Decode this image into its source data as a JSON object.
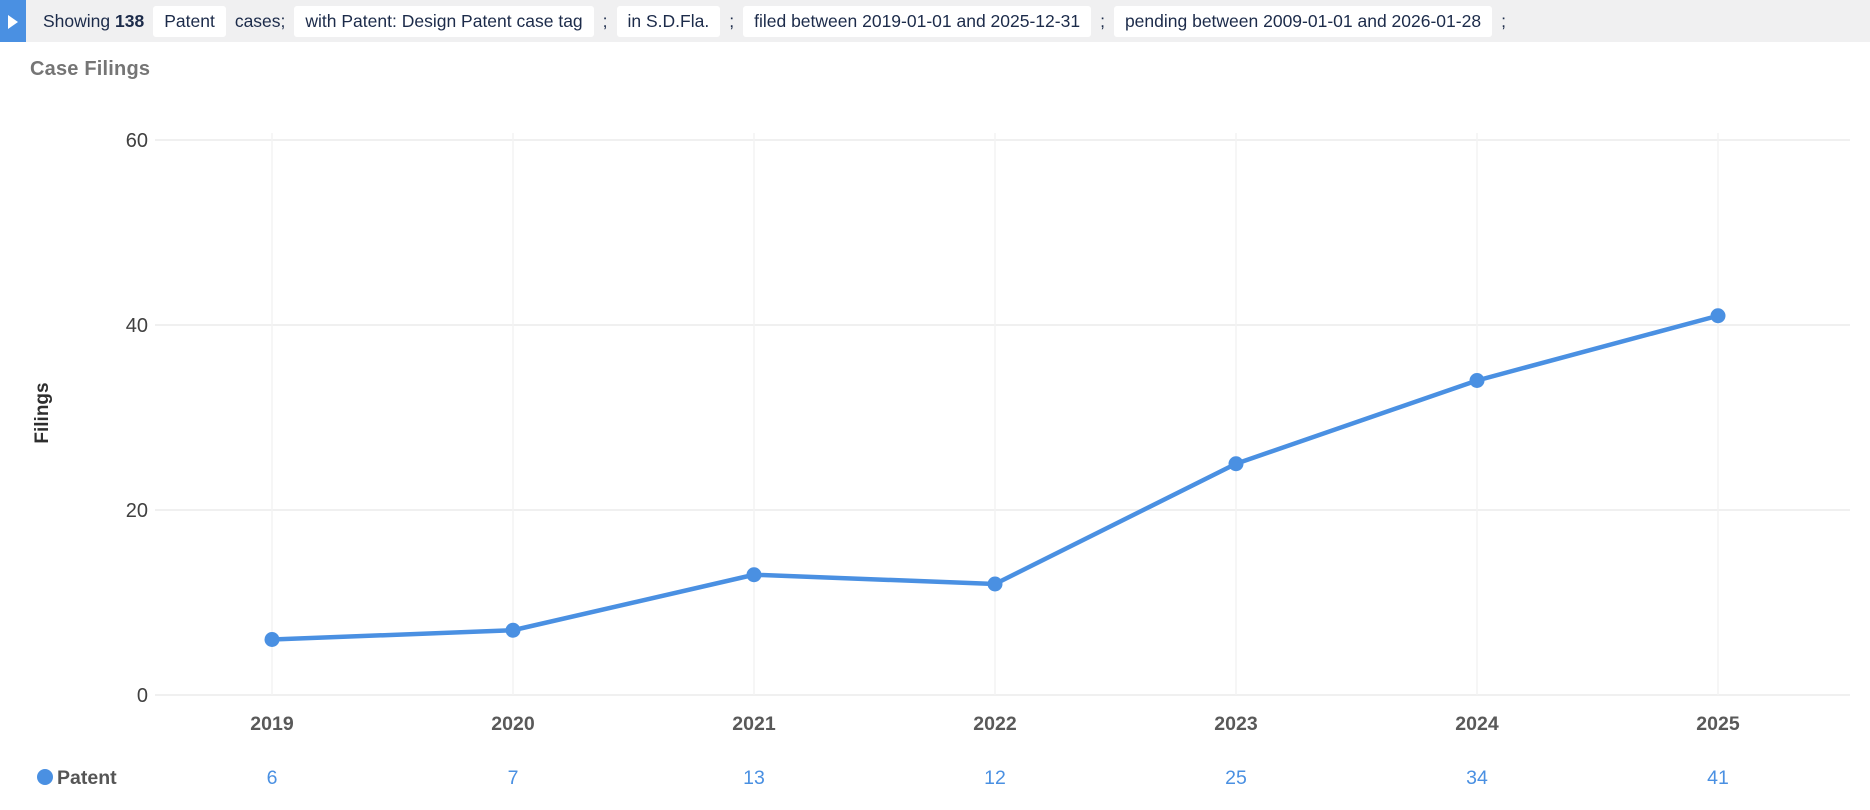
{
  "filter_bar": {
    "showing_label": "Showing",
    "count": "138",
    "case_type_chip": "Patent",
    "cases_separator": "cases;",
    "semicolon": ";",
    "chips": [
      "with Patent: Design Patent case tag",
      "in S.D.Fla.",
      "filed between 2019-01-01 and 2025-12-31",
      "pending between 2009-01-01 and 2026-01-28"
    ]
  },
  "icons": {
    "filter_toggle": "right-triangle-icon",
    "legend_marker": "circle-icon"
  },
  "colors": {
    "accent_blue": "#4a90e2",
    "toggle_button_blue": "#4a90e2",
    "filter_bar_bg": "#f0f0f1",
    "chip_bg": "#ffffff",
    "filter_text": "#1c2b4a",
    "grid": "#f0f0f0",
    "vertical_grid": "#f3f3f3",
    "axis_label_gray": "#595959",
    "tick_label_gray": "#404040",
    "title_gray": "#757575",
    "legend_label_gray": "#555555"
  },
  "chart_data": {
    "type": "line",
    "title": "Case Filings",
    "xlabel": "",
    "ylabel": "Filings",
    "categories": [
      "2019",
      "2020",
      "2021",
      "2022",
      "2023",
      "2024",
      "2025"
    ],
    "series": [
      {
        "name": "Patent",
        "values": [
          6,
          7,
          13,
          12,
          25,
          34,
          41
        ]
      }
    ],
    "ylim": [
      0,
      60
    ],
    "yticks": [
      0,
      20,
      40,
      60
    ],
    "grid": true,
    "legend_position": "bottom",
    "legend_shows_values": true
  }
}
